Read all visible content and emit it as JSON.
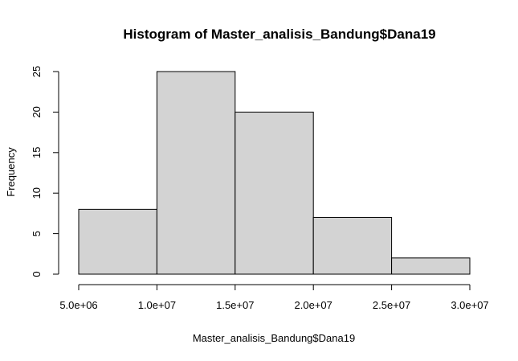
{
  "chart_data": {
    "type": "bar",
    "title": "Histogram of Master_analisis_Bandung$Dana19",
    "xlabel": "Master_analisis_Bandung$Dana19",
    "ylabel": "Frequency",
    "bins": [
      {
        "start": 5000000,
        "end": 10000000,
        "count": 8
      },
      {
        "start": 10000000,
        "end": 15000000,
        "count": 25
      },
      {
        "start": 15000000,
        "end": 20000000,
        "count": 20
      },
      {
        "start": 20000000,
        "end": 25000000,
        "count": 7
      },
      {
        "start": 25000000,
        "end": 30000000,
        "count": 2
      }
    ],
    "xlim": [
      5000000,
      30000000
    ],
    "ylim": [
      0,
      25
    ],
    "x_ticks": [
      {
        "value": 5000000,
        "label": "5.0e+06"
      },
      {
        "value": 10000000,
        "label": "1.0e+07"
      },
      {
        "value": 15000000,
        "label": "1.5e+07"
      },
      {
        "value": 20000000,
        "label": "2.0e+07"
      },
      {
        "value": 25000000,
        "label": "2.5e+07"
      },
      {
        "value": 30000000,
        "label": "3.0e+07"
      }
    ],
    "y_ticks": [
      {
        "value": 0,
        "label": "0"
      },
      {
        "value": 5,
        "label": "5"
      },
      {
        "value": 10,
        "label": "10"
      },
      {
        "value": 15,
        "label": "15"
      },
      {
        "value": 20,
        "label": "20"
      },
      {
        "value": 25,
        "label": "25"
      }
    ],
    "bar_color": "#d3d3d3",
    "grid": false,
    "legend": "none"
  }
}
